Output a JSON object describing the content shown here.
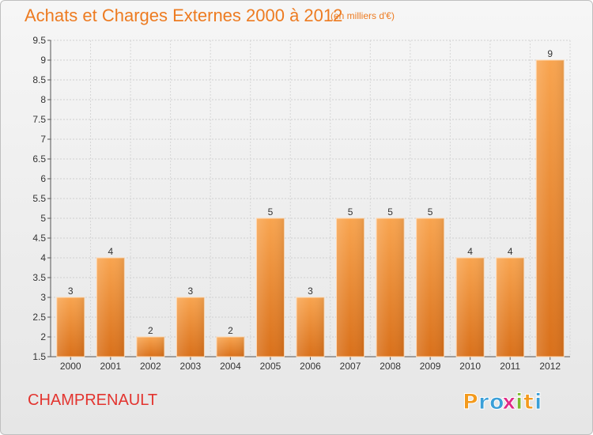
{
  "chart_data": {
    "type": "bar",
    "title": "Achats et Charges Externes 2000 à 2012",
    "subtitle": "(en milliers d'€)",
    "categories": [
      "2000",
      "2001",
      "2002",
      "2003",
      "2004",
      "2005",
      "2006",
      "2007",
      "2008",
      "2009",
      "2010",
      "2011",
      "2012"
    ],
    "values": [
      3,
      4,
      2,
      3,
      2,
      5,
      3,
      5,
      5,
      5,
      4,
      4,
      9
    ],
    "value_labels": [
      "3",
      "4",
      "2",
      "3",
      "2",
      "5",
      "3",
      "5",
      "5",
      "5",
      "4",
      "4",
      "9"
    ],
    "yticks": [
      "1.5",
      "2",
      "2.5",
      "3",
      "3.5",
      "4",
      "4.5",
      "5",
      "5.5",
      "6",
      "6.5",
      "7",
      "7.5",
      "8",
      "8.5",
      "9",
      "9.5"
    ],
    "ylim": [
      1.5,
      9.5
    ],
    "xlabel": "",
    "ylabel": "",
    "grid": true,
    "colors": {
      "bar": "#f39c44",
      "bar_dark": "#dc7414",
      "title": "#ed7b21",
      "place": "#e3342f"
    }
  },
  "location": "CHAMPRENAULT",
  "logo": {
    "letters": [
      "P",
      "r",
      "o",
      "x",
      "i",
      "t",
      "i"
    ],
    "colors": [
      "#f39a1d",
      "#3a9fd8",
      "#3a9fd8",
      "#e02a87",
      "#7dbb2d",
      "#f39a1d",
      "#3a9fd8"
    ]
  }
}
